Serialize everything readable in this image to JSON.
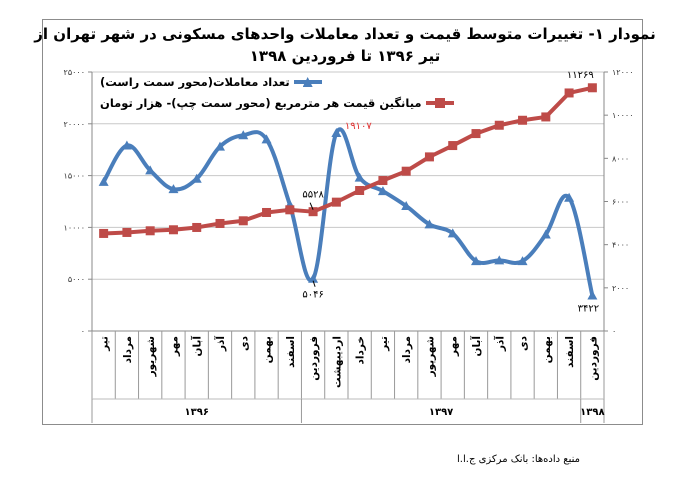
{
  "chart_data": {
    "type": "line",
    "title_line1": "نمودار ۱- تغییرات متوسط قیمت و تعداد معاملات واحدهای مسکونی در شهر تهران از",
    "title_line2": "تیر ۱۳۹۶ تا فروردین ۱۳۹۸",
    "categories": [
      "تیر",
      "مرداد",
      "شهریور",
      "مهر",
      "آبان",
      "آذر",
      "دی",
      "بهمن",
      "اسفند",
      "فروردین",
      "اردیبهشت",
      "خرداد",
      "تیر",
      "مرداد",
      "شهریور",
      "مهر",
      "آبان",
      "آذر",
      "دی",
      "بهمن",
      "اسفند",
      "فروردین"
    ],
    "year_groups": [
      {
        "label": "۱۳۹۶",
        "count": 9
      },
      {
        "label": "۱۳۹۷",
        "count": 12
      },
      {
        "label": "۱۳۹۸",
        "count": 1
      }
    ],
    "left_axis": {
      "min": 0,
      "max": 25000,
      "step": 5000,
      "tick_labels": [
        "۰",
        "۵۰۰۰",
        "۱۰۰۰۰",
        "۱۵۰۰۰",
        "۲۰۰۰۰",
        "۲۵۰۰۰"
      ]
    },
    "right_axis": {
      "min": 0,
      "max": 12000,
      "step": 2000,
      "tick_labels": [
        "۰",
        "۲۰۰۰",
        "۴۰۰۰",
        "۶۰۰۰",
        "۸۰۰۰",
        "۱۰۰۰۰",
        "۱۲۰۰۰"
      ]
    },
    "series": [
      {
        "name": "تعداد معاملات(محور سمت راست)",
        "color": "#4a7ebb",
        "marker": "triangle",
        "axis": "left",
        "values": [
          14400,
          17900,
          15500,
          13700,
          14700,
          17800,
          18900,
          18500,
          12200,
          5046,
          19107,
          14800,
          13500,
          12060,
          10290,
          9420,
          6750,
          6820,
          6750,
          9320,
          12860,
          3422
        ]
      },
      {
        "name": "میانگین قیمت هر مترمربع (محور سمت چپ)- هزار تومان",
        "color": "#be4b48",
        "marker": "square",
        "axis": "right",
        "values": [
          4520,
          4566,
          4643,
          4690,
          4797,
          4982,
          5106,
          5491,
          5615,
          5528,
          5970,
          6510,
          6972,
          7404,
          8067,
          8592,
          9147,
          9533,
          9764,
          9918,
          11029,
          11269
        ]
      }
    ],
    "data_labels": [
      {
        "text": "۵۵۲۸",
        "series": 1,
        "index": 9,
        "color": "#000000"
      },
      {
        "text": "۵۰۴۶",
        "series": 0,
        "index": 9,
        "color": "#000000"
      },
      {
        "text": "۱۹۱۰۷",
        "series": 0,
        "index": 10,
        "color": "#e03030"
      },
      {
        "text": "۱۱۲۶۹",
        "series": 1,
        "index": 21,
        "color": "#000000"
      },
      {
        "text": "۳۴۲۲",
        "series": 0,
        "index": 21,
        "color": "#000000"
      }
    ],
    "grid": true,
    "legend_position": "top-left"
  },
  "source": "منبع داده‌ها: بانک مرکزی ج.ا.ا"
}
